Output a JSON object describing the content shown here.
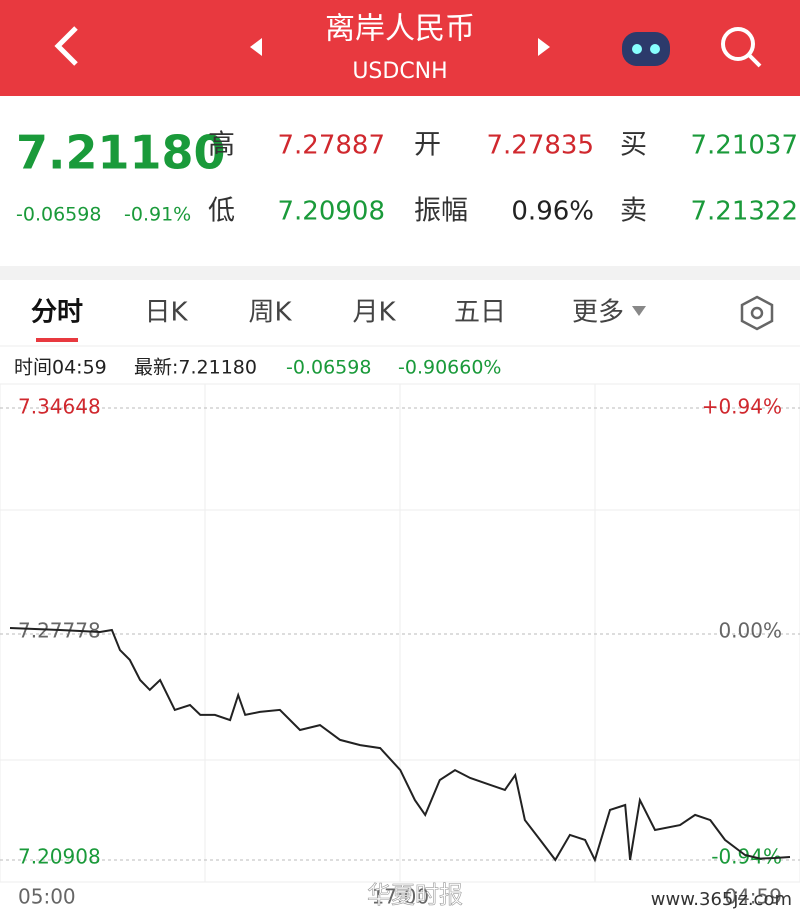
{
  "header": {
    "title": "离岸人民币",
    "subtitle": "USDCNH"
  },
  "quote": {
    "price": "7.21180",
    "change": "-0.06598",
    "change_pct": "-0.91%",
    "fields": [
      {
        "label": "高",
        "value": "7.27887",
        "color": "#d0282e"
      },
      {
        "label": "开",
        "value": "7.27835",
        "color": "#d0282e"
      },
      {
        "label": "买",
        "value": "7.21037",
        "color": "#1a9a3a"
      },
      {
        "label": "低",
        "value": "7.20908",
        "color": "#1a9a3a"
      },
      {
        "label": "振幅",
        "value": "0.96%",
        "color": "#222222"
      },
      {
        "label": "卖",
        "value": "7.21322",
        "color": "#1a9a3a"
      }
    ]
  },
  "tabs": [
    "分时",
    "日K",
    "周K",
    "月K",
    "五日",
    "更多"
  ],
  "info": [
    "时间04:59",
    "最新:7.21180",
    "-0.06598",
    "-0.90660%"
  ],
  "chart_data": {
    "type": "line",
    "color": "#222222",
    "x": [
      0,
      92,
      166,
      188,
      203,
      221,
      240,
      258,
      277,
      304,
      332,
      351,
      378,
      406,
      421,
      434,
      461,
      498,
      535,
      572,
      609,
      646,
      683,
      720,
      747,
      766,
      793,
      821,
      849,
      886,
      913,
      932,
      950,
      978,
      1006,
      1033,
      1061,
      1079,
      1107,
      1135,
      1144,
      1162,
      1190,
      1236,
      1264,
      1292,
      1319,
      1356,
      1384,
      1411,
      1439
    ],
    "values": [
      7.2796,
      7.279,
      7.2784,
      7.279,
      7.2729,
      7.2699,
      7.2638,
      7.2608,
      7.2638,
      7.2547,
      7.2562,
      7.2532,
      7.2532,
      7.2516,
      7.2592,
      7.2532,
      7.2541,
      7.2547,
      7.2486,
      7.2501,
      7.2456,
      7.244,
      7.2431,
      7.2364,
      7.2273,
      7.2228,
      7.2334,
      7.2364,
      7.234,
      7.2319,
      7.2304,
      7.2349,
      7.2212,
      7.2152,
      7.2091,
      7.2167,
      7.2152,
      7.2091,
      7.2243,
      7.2258,
      7.2091,
      7.2273,
      7.2182,
      7.2197,
      7.2228,
      7.2212,
      7.2152,
      7.2106,
      7.2095,
      7.2097,
      7.21
    ],
    "xlim": [
      0,
      1439
    ],
    "xticks": [
      {
        "value": 0,
        "label": "05:00"
      },
      {
        "value": 720,
        "label": "17:00"
      },
      {
        "value": 1439,
        "label": "04:59"
      }
    ],
    "ylim": [
      7.20908,
      7.34648
    ],
    "yticks": [
      7.34648,
      7.27778,
      7.20908
    ],
    "y2lim": [
      -0.94,
      0.94
    ],
    "y2ticks": [
      {
        "value": 0.94,
        "label": "+0.94%"
      },
      {
        "value": 0,
        "label": "0.00%"
      },
      {
        "value": -0.94,
        "label": "-0.94%"
      }
    ]
  },
  "watermark": [
    "华夏时报",
    "www.365jz.com"
  ]
}
